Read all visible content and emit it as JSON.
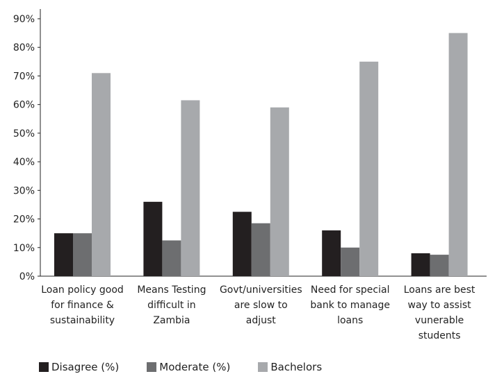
{
  "chart_data": {
    "type": "bar",
    "categories": [
      [
        "Loan policy good",
        "for finance &",
        "sustainability"
      ],
      [
        "Means Testing",
        "difficult in",
        "Zambia"
      ],
      [
        "Govt/universities",
        "are slow to",
        "adjust"
      ],
      [
        "Need for special",
        "bank to manage",
        "loans"
      ],
      [
        "Loans are best",
        "way to assist",
        "vunerable",
        "students"
      ]
    ],
    "series": [
      {
        "name": "Disagree (%)",
        "color": "#231f20",
        "values": [
          15,
          26,
          22.5,
          16,
          8
        ]
      },
      {
        "name": "Moderate (%)",
        "color": "#6d6e70",
        "values": [
          15,
          12.5,
          18.5,
          10,
          7.5
        ]
      },
      {
        "name": "Bachelors",
        "color": "#a7a9ac",
        "values": [
          71,
          61.5,
          59,
          75,
          85
        ]
      }
    ],
    "ylim": [
      0,
      90
    ],
    "yticks": [
      "0%",
      "10%",
      "20%",
      "30%",
      "40%",
      "50%",
      "60%",
      "70%",
      "80%",
      "90%"
    ],
    "grid": false,
    "legend_position": "bottom"
  }
}
